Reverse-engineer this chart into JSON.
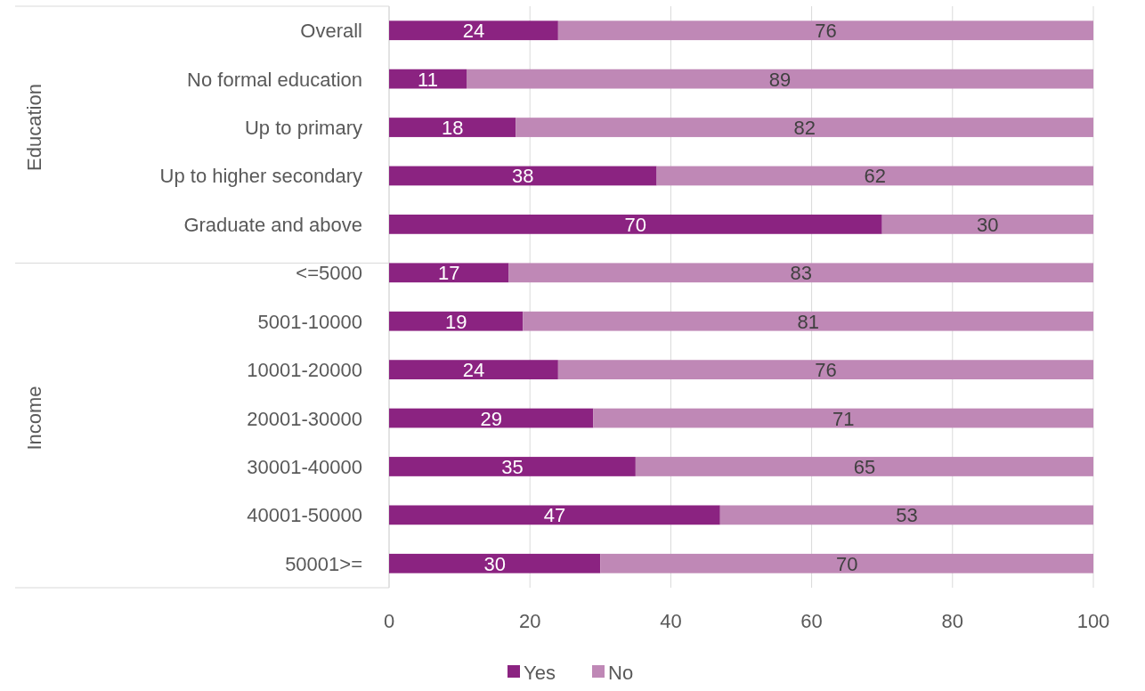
{
  "chart_data": {
    "type": "bar",
    "orientation": "horizontal",
    "stacked": true,
    "categories": [
      "Overall",
      "No formal education",
      "Up to primary",
      "Up to higher secondary",
      "Graduate and above",
      "<=5000",
      "5001-10000",
      "10001-20000",
      "20001-30000",
      "30001-40000",
      "40001-50000",
      "50001>="
    ],
    "series": [
      {
        "name": "Yes",
        "color": "#8b2381",
        "values": [
          24,
          11,
          18,
          38,
          70,
          17,
          19,
          24,
          29,
          35,
          47,
          30
        ]
      },
      {
        "name": "No",
        "color": "#bf88b6",
        "values": [
          76,
          89,
          82,
          62,
          30,
          83,
          81,
          76,
          71,
          65,
          53,
          70
        ]
      }
    ],
    "xlim": [
      0,
      100
    ],
    "xticks": [
      0,
      20,
      40,
      60,
      80,
      100
    ],
    "grid": "x",
    "legend": "bottom",
    "data_labels": true,
    "annotations": [
      "Education",
      "Income"
    ]
  }
}
